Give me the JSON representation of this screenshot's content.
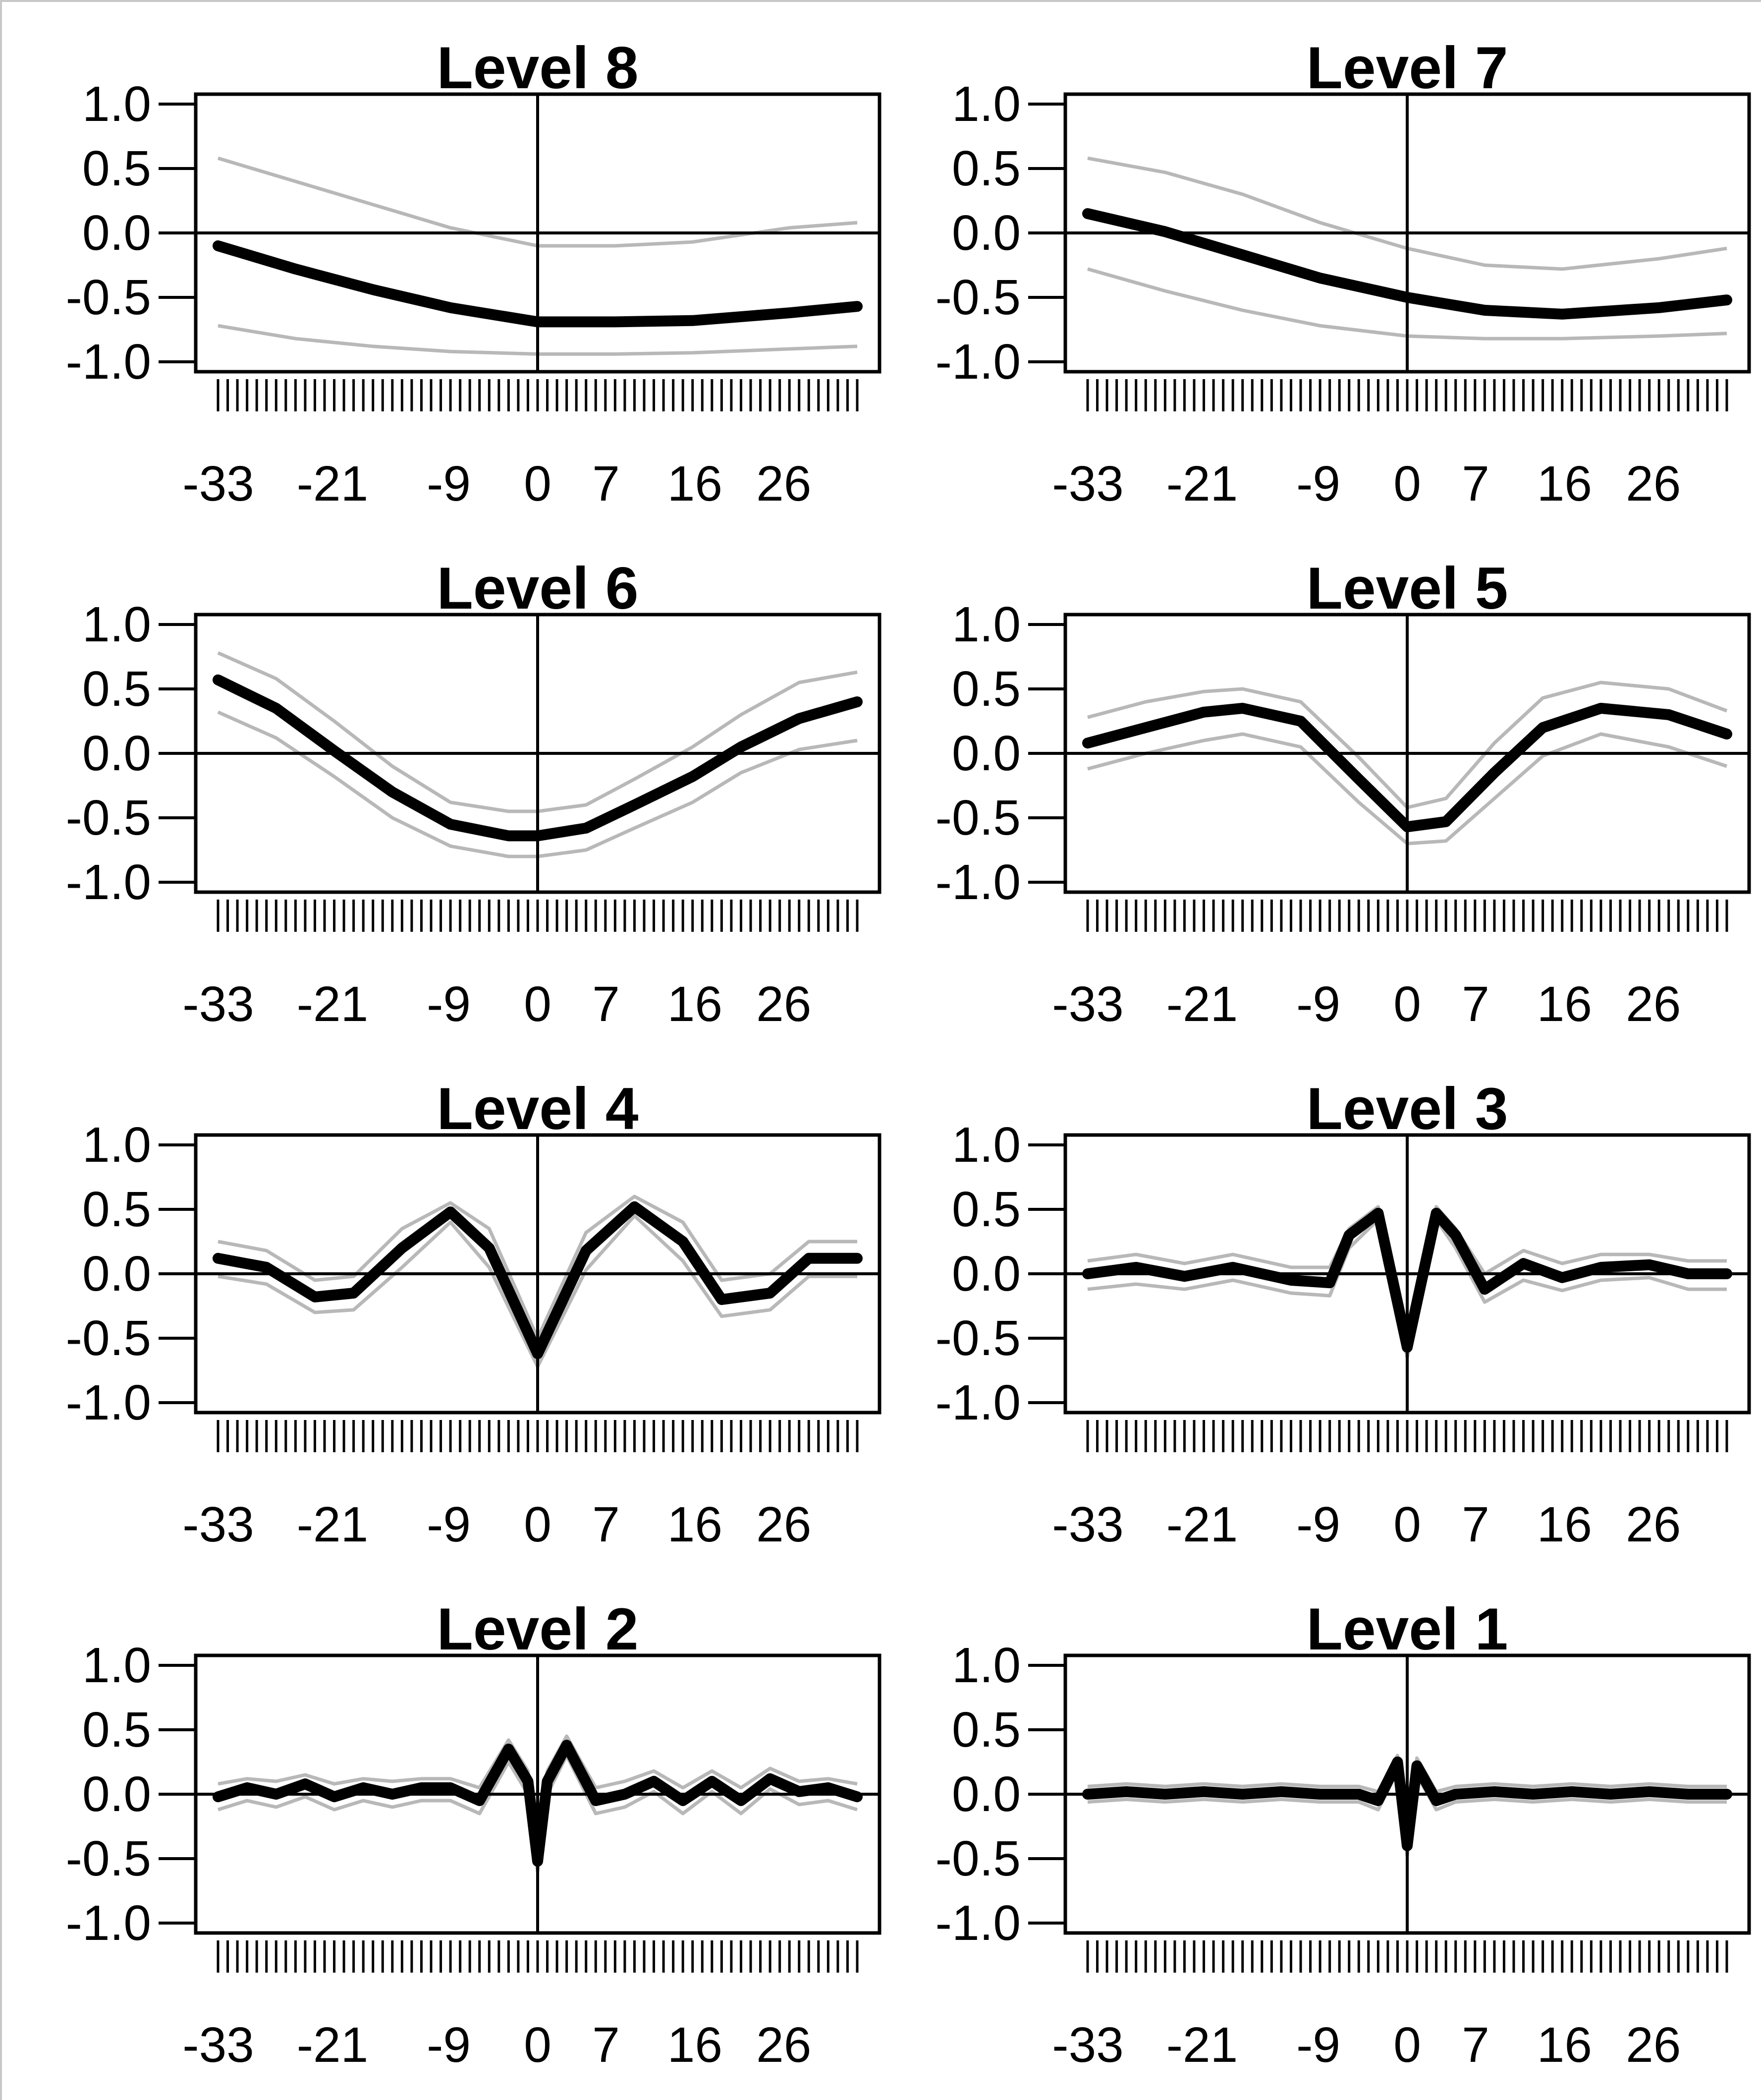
{
  "figure": {
    "colors": {
      "estimate": "#000000",
      "bands": "#b8b8b8",
      "axes": "#000000",
      "frame": "#c8c8c8"
    }
  },
  "chart_data": [
    {
      "type": "line",
      "title": "Level 8",
      "x": [
        -33,
        -25,
        -17,
        -9,
        0,
        8,
        16,
        26,
        33
      ],
      "ylim": [
        -1.0,
        1.0
      ],
      "yticks": [
        1.0,
        0.5,
        0.0,
        -0.5,
        -1.0
      ],
      "xtick_labels": [
        "-33",
        "-21",
        "-9",
        "0",
        "7",
        "16",
        "26"
      ],
      "series": [
        {
          "role": "estimate",
          "values": [
            -0.1,
            -0.28,
            -0.44,
            -0.58,
            -0.69,
            -0.69,
            -0.68,
            -0.62,
            -0.57
          ]
        },
        {
          "role": "upper",
          "values": [
            0.58,
            0.4,
            0.22,
            0.04,
            -0.1,
            -0.1,
            -0.07,
            0.04,
            0.08
          ]
        },
        {
          "role": "lower",
          "values": [
            -0.72,
            -0.82,
            -0.88,
            -0.92,
            -0.94,
            -0.94,
            -0.93,
            -0.9,
            -0.88
          ]
        }
      ]
    },
    {
      "type": "line",
      "title": "Level 7",
      "x": [
        -33,
        -25,
        -17,
        -9,
        0,
        8,
        16,
        26,
        33
      ],
      "ylim": [
        -1.0,
        1.0
      ],
      "yticks": [
        1.0,
        0.5,
        0.0,
        -0.5,
        -1.0
      ],
      "xtick_labels": [
        "-33",
        "-21",
        "-9",
        "0",
        "7",
        "16",
        "26"
      ],
      "series": [
        {
          "role": "estimate",
          "values": [
            0.15,
            0.01,
            -0.17,
            -0.35,
            -0.5,
            -0.6,
            -0.63,
            -0.58,
            -0.52
          ]
        },
        {
          "role": "upper",
          "values": [
            0.58,
            0.47,
            0.3,
            0.08,
            -0.12,
            -0.25,
            -0.28,
            -0.2,
            -0.12
          ]
        },
        {
          "role": "lower",
          "values": [
            -0.28,
            -0.45,
            -0.6,
            -0.72,
            -0.8,
            -0.82,
            -0.82,
            -0.8,
            -0.78
          ]
        }
      ]
    },
    {
      "type": "line",
      "title": "Level 6",
      "x": [
        -33,
        -27,
        -21,
        -15,
        -9,
        -3,
        0,
        5,
        10,
        16,
        21,
        27,
        33
      ],
      "ylim": [
        -1.0,
        1.0
      ],
      "yticks": [
        1.0,
        0.5,
        0.0,
        -0.5,
        -1.0
      ],
      "xtick_labels": [
        "-33",
        "-21",
        "-9",
        "0",
        "7",
        "16",
        "26"
      ],
      "series": [
        {
          "role": "estimate",
          "values": [
            0.57,
            0.35,
            0.02,
            -0.3,
            -0.55,
            -0.64,
            -0.64,
            -0.58,
            -0.4,
            -0.18,
            0.05,
            0.27,
            0.4
          ]
        },
        {
          "role": "upper",
          "values": [
            0.78,
            0.58,
            0.25,
            -0.1,
            -0.38,
            -0.45,
            -0.45,
            -0.4,
            -0.2,
            0.05,
            0.3,
            0.55,
            0.63
          ]
        },
        {
          "role": "lower",
          "values": [
            0.32,
            0.12,
            -0.18,
            -0.5,
            -0.72,
            -0.8,
            -0.8,
            -0.75,
            -0.58,
            -0.38,
            -0.15,
            0.03,
            0.1
          ]
        }
      ]
    },
    {
      "type": "line",
      "title": "Level 5",
      "x": [
        -33,
        -27,
        -21,
        -17,
        -11,
        -5,
        0,
        4,
        9,
        14,
        20,
        27,
        33
      ],
      "ylim": [
        -1.0,
        1.0
      ],
      "yticks": [
        1.0,
        0.5,
        0.0,
        -0.5,
        -1.0
      ],
      "xtick_labels": [
        "-33",
        "-21",
        "-9",
        "0",
        "7",
        "16",
        "26"
      ],
      "series": [
        {
          "role": "estimate",
          "values": [
            0.08,
            0.2,
            0.32,
            0.35,
            0.25,
            -0.2,
            -0.57,
            -0.53,
            -0.15,
            0.2,
            0.35,
            0.3,
            0.15
          ]
        },
        {
          "role": "upper",
          "values": [
            0.28,
            0.4,
            0.48,
            0.5,
            0.4,
            -0.03,
            -0.42,
            -0.35,
            0.08,
            0.43,
            0.55,
            0.5,
            0.33
          ]
        },
        {
          "role": "lower",
          "values": [
            -0.12,
            0.0,
            0.1,
            0.15,
            0.05,
            -0.38,
            -0.7,
            -0.68,
            -0.35,
            -0.02,
            0.15,
            0.05,
            -0.1
          ]
        }
      ]
    },
    {
      "type": "line",
      "title": "Level 4",
      "x": [
        -33,
        -28,
        -23,
        -19,
        -14,
        -9,
        -5,
        0,
        5,
        10,
        15,
        19,
        24,
        28,
        33
      ],
      "ylim": [
        -1.0,
        1.0
      ],
      "yticks": [
        1.0,
        0.5,
        0.0,
        -0.5,
        -1.0
      ],
      "xtick_labels": [
        "-33",
        "-21",
        "-9",
        "0",
        "7",
        "16",
        "26"
      ],
      "series": [
        {
          "role": "estimate",
          "values": [
            0.12,
            0.05,
            -0.18,
            -0.15,
            0.2,
            0.48,
            0.2,
            -0.62,
            0.18,
            0.52,
            0.25,
            -0.2,
            -0.15,
            0.12,
            0.12
          ]
        },
        {
          "role": "upper",
          "values": [
            0.25,
            0.18,
            -0.05,
            -0.02,
            0.35,
            0.55,
            0.35,
            -0.5,
            0.32,
            0.6,
            0.4,
            -0.05,
            0.0,
            0.25,
            0.25
          ]
        },
        {
          "role": "lower",
          "values": [
            -0.02,
            -0.08,
            -0.3,
            -0.28,
            0.05,
            0.4,
            0.05,
            -0.72,
            0.03,
            0.45,
            0.1,
            -0.33,
            -0.28,
            -0.02,
            -0.02
          ]
        }
      ]
    },
    {
      "type": "line",
      "title": "Level 3",
      "x": [
        -33,
        -28,
        -23,
        -18,
        -12,
        -8,
        -6,
        -3,
        0,
        3,
        5,
        8,
        12,
        16,
        20,
        25,
        29,
        33
      ],
      "ylim": [
        -1.0,
        1.0
      ],
      "yticks": [
        1.0,
        0.5,
        0.0,
        -0.5,
        -1.0
      ],
      "xtick_labels": [
        "-33",
        "-21",
        "-9",
        "0",
        "7",
        "16",
        "26"
      ],
      "series": [
        {
          "role": "estimate",
          "values": [
            0.0,
            0.05,
            -0.02,
            0.05,
            -0.05,
            -0.07,
            0.3,
            0.47,
            -0.57,
            0.47,
            0.3,
            -0.12,
            0.08,
            -0.03,
            0.05,
            0.07,
            0.0,
            0.0
          ]
        },
        {
          "role": "upper",
          "values": [
            0.1,
            0.15,
            0.08,
            0.15,
            0.05,
            0.05,
            0.35,
            0.52,
            -0.45,
            0.52,
            0.35,
            0.0,
            0.18,
            0.08,
            0.15,
            0.15,
            0.1,
            0.1
          ]
        },
        {
          "role": "lower",
          "values": [
            -0.12,
            -0.08,
            -0.12,
            -0.05,
            -0.15,
            -0.17,
            0.2,
            0.42,
            -0.65,
            0.42,
            0.2,
            -0.22,
            -0.05,
            -0.13,
            -0.05,
            -0.03,
            -0.12,
            -0.12
          ]
        }
      ]
    },
    {
      "type": "line",
      "title": "Level 2",
      "x": [
        -33,
        -30,
        -27,
        -24,
        -21,
        -18,
        -15,
        -12,
        -9,
        -6,
        -3,
        -1,
        0,
        1,
        3,
        6,
        9,
        12,
        15,
        18,
        21,
        24,
        27,
        30,
        33
      ],
      "ylim": [
        -1.0,
        1.0
      ],
      "yticks": [
        1.0,
        0.5,
        0.0,
        -0.5,
        -1.0
      ],
      "xtick_labels": [
        "-33",
        "-21",
        "-9",
        "0",
        "7",
        "16",
        "26"
      ],
      "series": [
        {
          "role": "estimate",
          "values": [
            -0.02,
            0.05,
            0.0,
            0.08,
            -0.02,
            0.05,
            0.0,
            0.05,
            0.05,
            -0.05,
            0.35,
            0.1,
            -0.52,
            0.1,
            0.38,
            -0.05,
            0.0,
            0.1,
            -0.05,
            0.1,
            -0.05,
            0.12,
            0.02,
            0.05,
            -0.02
          ]
        },
        {
          "role": "upper",
          "values": [
            0.08,
            0.12,
            0.1,
            0.15,
            0.08,
            0.12,
            0.1,
            0.12,
            0.12,
            0.05,
            0.42,
            0.18,
            -0.4,
            0.18,
            0.45,
            0.05,
            0.1,
            0.18,
            0.05,
            0.18,
            0.05,
            0.2,
            0.1,
            0.12,
            0.08
          ]
        },
        {
          "role": "lower",
          "values": [
            -0.12,
            -0.05,
            -0.1,
            -0.02,
            -0.12,
            -0.05,
            -0.1,
            -0.05,
            -0.05,
            -0.15,
            0.25,
            0.0,
            -0.6,
            0.0,
            0.3,
            -0.15,
            -0.1,
            0.02,
            -0.15,
            0.02,
            -0.15,
            0.04,
            -0.08,
            -0.05,
            -0.12
          ]
        }
      ]
    },
    {
      "type": "line",
      "title": "Level 1",
      "x": [
        -33,
        -29,
        -25,
        -21,
        -17,
        -13,
        -9,
        -5,
        -3,
        -1,
        0,
        1,
        3,
        5,
        9,
        13,
        17,
        21,
        25,
        29,
        33
      ],
      "ylim": [
        -1.0,
        1.0
      ],
      "yticks": [
        1.0,
        0.5,
        0.0,
        -0.5,
        -1.0
      ],
      "xtick_labels": [
        "-33",
        "-21",
        "-9",
        "0",
        "7",
        "16",
        "26"
      ],
      "series": [
        {
          "role": "estimate",
          "values": [
            0.0,
            0.02,
            0.0,
            0.02,
            0.0,
            0.02,
            0.0,
            0.0,
            -0.05,
            0.25,
            -0.4,
            0.22,
            -0.05,
            0.0,
            0.02,
            0.0,
            0.02,
            0.0,
            0.02,
            0.0,
            0.0
          ]
        },
        {
          "role": "upper",
          "values": [
            0.06,
            0.08,
            0.06,
            0.08,
            0.06,
            0.08,
            0.06,
            0.06,
            0.02,
            0.3,
            -0.3,
            0.28,
            0.02,
            0.06,
            0.08,
            0.06,
            0.08,
            0.06,
            0.08,
            0.06,
            0.06
          ]
        },
        {
          "role": "lower",
          "values": [
            -0.06,
            -0.04,
            -0.06,
            -0.04,
            -0.06,
            -0.04,
            -0.06,
            -0.06,
            -0.12,
            0.18,
            -0.48,
            0.15,
            -0.12,
            -0.06,
            -0.04,
            -0.06,
            -0.04,
            -0.06,
            -0.04,
            -0.06,
            -0.06
          ]
        }
      ]
    }
  ]
}
